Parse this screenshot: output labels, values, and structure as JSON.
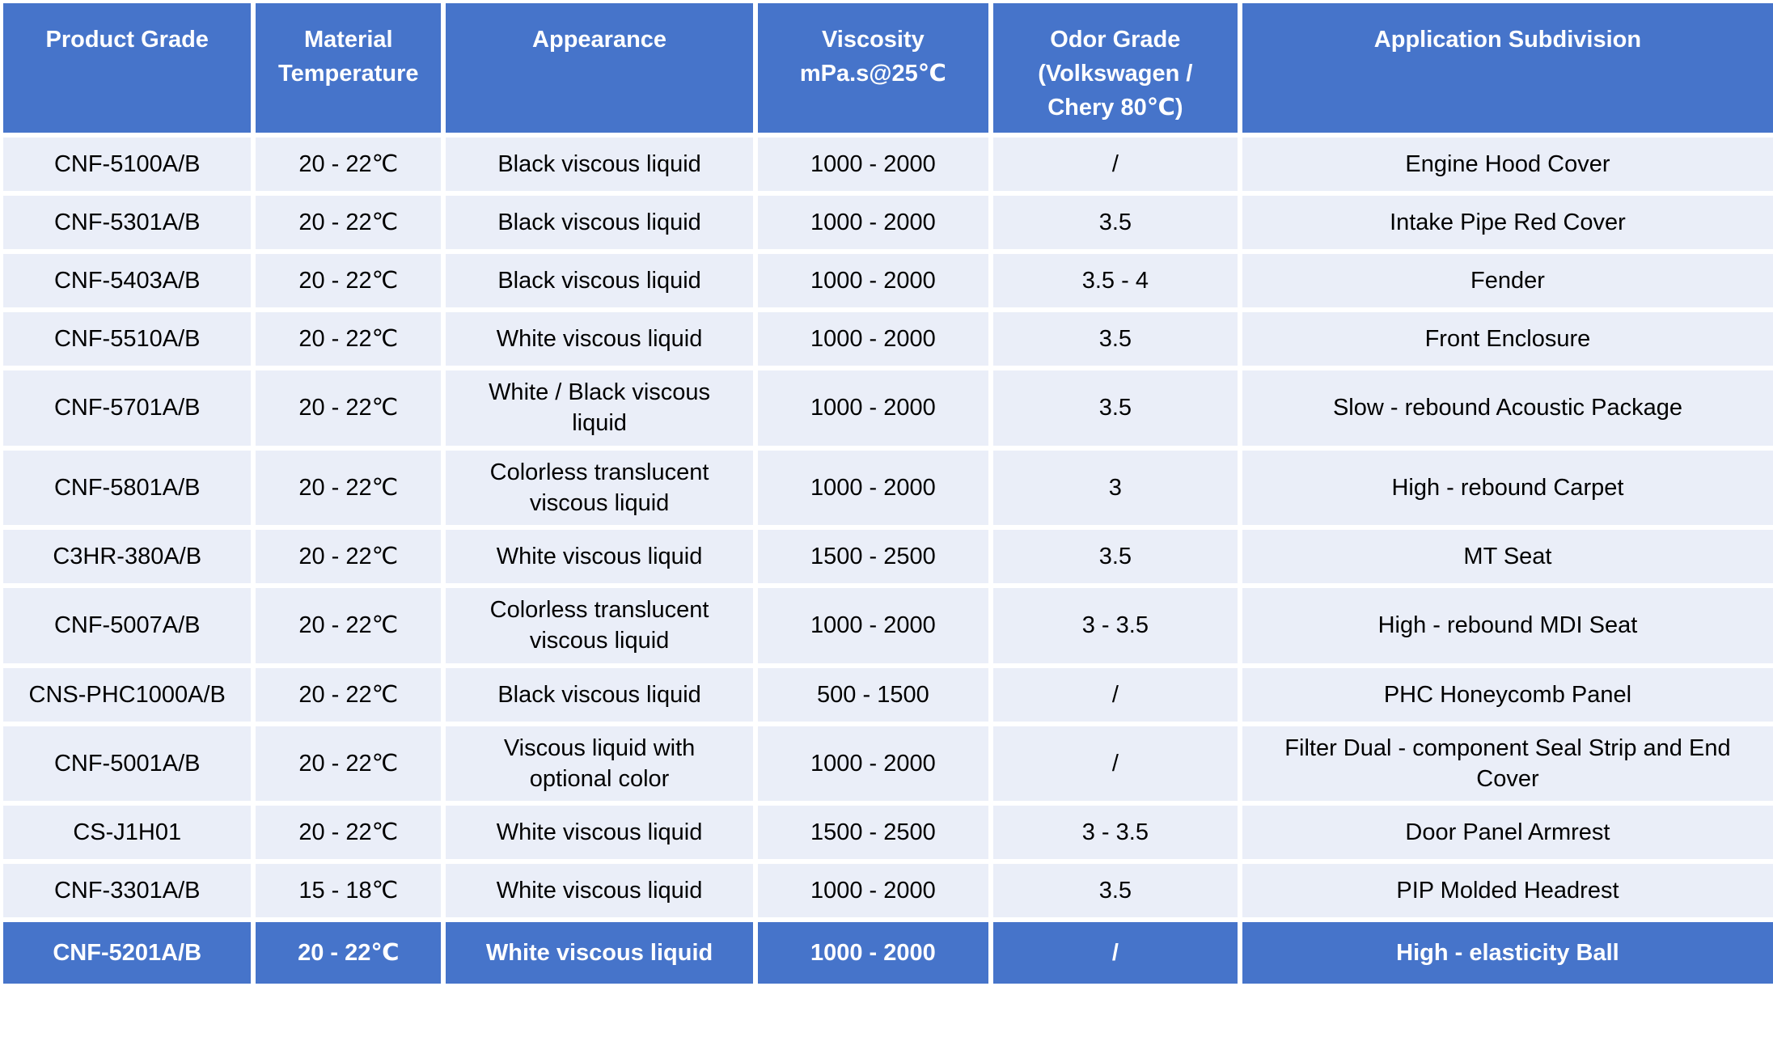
{
  "colors": {
    "header_bg": "#4674CA",
    "row_bg": "#EAEEF8",
    "highlight_bg": "#4674CA",
    "header_text": "#FFFFFF",
    "body_text": "#000000"
  },
  "table": {
    "columns": [
      {
        "key": "product_grade",
        "label": "Product Grade"
      },
      {
        "key": "material_temperature",
        "label": "Material\nTemperature"
      },
      {
        "key": "appearance",
        "label": "Appearance"
      },
      {
        "key": "viscosity",
        "label": "Viscosity\nmPa.s@25℃"
      },
      {
        "key": "odor_grade",
        "label": "Odor Grade\n(Volkswagen /\nChery 80℃)"
      },
      {
        "key": "application",
        "label": "Application Subdivision"
      }
    ],
    "rows": [
      {
        "product_grade": "CNF-5100A/B",
        "material_temperature": "20 - 22℃",
        "appearance": "Black viscous liquid",
        "viscosity": "1000 - 2000",
        "odor_grade": "/",
        "application": "Engine Hood Cover",
        "highlighted": false
      },
      {
        "product_grade": "CNF-5301A/B",
        "material_temperature": "20 - 22℃",
        "appearance": "Black viscous liquid",
        "viscosity": "1000 - 2000",
        "odor_grade": "3.5",
        "application": "Intake Pipe Red Cover",
        "highlighted": false
      },
      {
        "product_grade": "CNF-5403A/B",
        "material_temperature": "20 - 22℃",
        "appearance": "Black viscous liquid",
        "viscosity": "1000 - 2000",
        "odor_grade": "3.5 - 4",
        "application": "Fender",
        "highlighted": false
      },
      {
        "product_grade": "CNF-5510A/B",
        "material_temperature": "20 - 22℃",
        "appearance": "White viscous liquid",
        "viscosity": "1000 - 2000",
        "odor_grade": "3.5",
        "application": "Front Enclosure",
        "highlighted": false
      },
      {
        "product_grade": "CNF-5701A/B",
        "material_temperature": "20 - 22℃",
        "appearance": "White / Black viscous liquid",
        "viscosity": "1000 - 2000",
        "odor_grade": "3.5",
        "application": "Slow - rebound Acoustic Package",
        "highlighted": false
      },
      {
        "product_grade": "CNF-5801A/B",
        "material_temperature": "20 - 22℃",
        "appearance": "Colorless translucent viscous liquid",
        "viscosity": "1000 - 2000",
        "odor_grade": "3",
        "application": "High - rebound Carpet",
        "highlighted": false
      },
      {
        "product_grade": "C3HR-380A/B",
        "material_temperature": "20 - 22℃",
        "appearance": "White viscous liquid",
        "viscosity": "1500 - 2500",
        "odor_grade": "3.5",
        "application": "MT Seat",
        "highlighted": false
      },
      {
        "product_grade": "CNF-5007A/B",
        "material_temperature": "20 - 22℃",
        "appearance": "Colorless translucent viscous liquid",
        "viscosity": "1000 - 2000",
        "odor_grade": "3 - 3.5",
        "application": "High - rebound MDI Seat",
        "highlighted": false
      },
      {
        "product_grade": "CNS-PHC1000A/B",
        "material_temperature": "20 - 22℃",
        "appearance": "Black viscous liquid",
        "viscosity": "500 - 1500",
        "odor_grade": "/",
        "application": "PHC Honeycomb Panel",
        "highlighted": false
      },
      {
        "product_grade": "CNF-5001A/B",
        "material_temperature": "20 - 22℃",
        "appearance": "Viscous liquid with optional color",
        "viscosity": "1000 - 2000",
        "odor_grade": "/",
        "application": "Filter Dual - component Seal Strip and End Cover",
        "highlighted": false
      },
      {
        "product_grade": "CS-J1H01",
        "material_temperature": "20 - 22℃",
        "appearance": "White viscous liquid",
        "viscosity": "1500 - 2500",
        "odor_grade": "3 - 3.5",
        "application": "Door Panel Armrest",
        "highlighted": false
      },
      {
        "product_grade": "CNF-3301A/B",
        "material_temperature": "15 - 18℃",
        "appearance": "White viscous liquid",
        "viscosity": "1000 - 2000",
        "odor_grade": "3.5",
        "application": "PIP Molded Headrest",
        "highlighted": false
      },
      {
        "product_grade": "CNF-5201A/B",
        "material_temperature": "20 - 22℃",
        "appearance": "White viscous liquid",
        "viscosity": "1000 - 2000",
        "odor_grade": "/",
        "application": "High - elasticity Ball",
        "highlighted": true
      }
    ]
  }
}
